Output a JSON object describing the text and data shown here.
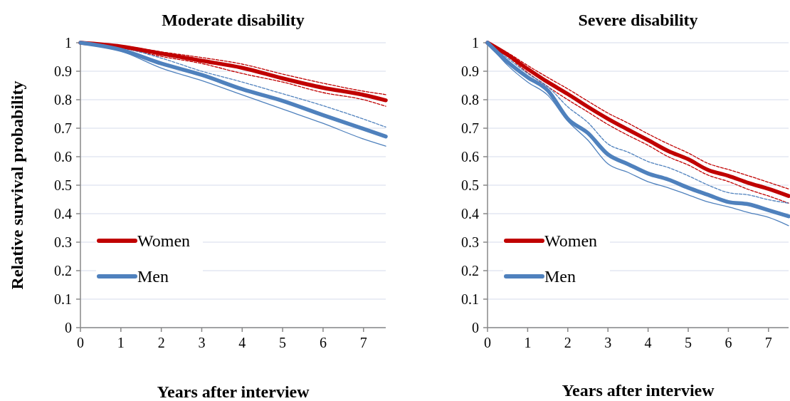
{
  "chart_data": [
    {
      "type": "line",
      "title": "Moderate disability",
      "xlabel": "Years after interview",
      "ylabel": "Relative survival probability",
      "x": [
        0,
        1,
        2,
        3,
        4,
        5,
        6,
        7,
        7.55
      ],
      "xlim": [
        0,
        7.55
      ],
      "ylim": [
        0,
        1
      ],
      "xticks": [
        0,
        1,
        2,
        3,
        4,
        5,
        6,
        7
      ],
      "yticks": [
        0,
        0.1,
        0.2,
        0.3,
        0.4,
        0.5,
        0.6,
        0.7,
        0.8,
        0.9,
        1
      ],
      "grid": "y",
      "legend": "bottom left",
      "series": [
        {
          "color": "#c00000",
          "line_style": "dashed",
          "values": [
            1,
            0.99,
            0.968,
            0.948,
            0.925,
            0.89,
            0.858,
            0.83,
            0.818
          ]
        },
        {
          "color": "#c00000",
          "line_style": "dashed",
          "values": [
            1,
            0.982,
            0.952,
            0.927,
            0.892,
            0.862,
            0.825,
            0.8,
            0.777
          ]
        },
        {
          "color": "#4f81bd",
          "line_style": "dashed",
          "values": [
            1,
            0.983,
            0.946,
            0.9,
            0.862,
            0.821,
            0.779,
            0.732,
            0.704
          ]
        },
        {
          "color": "#4f81bd",
          "line_style": "solid",
          "values": [
            1,
            0.971,
            0.911,
            0.867,
            0.817,
            0.767,
            0.717,
            0.662,
            0.637
          ]
        },
        {
          "name": "Women",
          "color": "#c00000",
          "line_style": "solid",
          "values": [
            1,
            0.987,
            0.962,
            0.937,
            0.912,
            0.875,
            0.842,
            0.817,
            0.798
          ]
        },
        {
          "name": "Men",
          "color": "#4f81bd",
          "line_style": "solid",
          "values": [
            1,
            0.975,
            0.927,
            0.887,
            0.837,
            0.796,
            0.746,
            0.698,
            0.671
          ]
        }
      ]
    },
    {
      "type": "line",
      "title": "Severe disability",
      "xlabel": "Years after interview",
      "x": [
        0,
        0.5,
        1,
        1.5,
        2,
        2.5,
        3,
        3.5,
        4,
        4.5,
        5,
        5.5,
        6,
        6.5,
        7,
        7.5
      ],
      "xlim": [
        0,
        7.5
      ],
      "ylim": [
        0,
        1
      ],
      "xticks": [
        0,
        1,
        2,
        3,
        4,
        5,
        6,
        7
      ],
      "yticks": [
        0,
        0.1,
        0.2,
        0.3,
        0.4,
        0.5,
        0.6,
        0.7,
        0.8,
        0.9,
        1
      ],
      "grid": "y",
      "legend": "bottom left",
      "series": [
        {
          "color": "#c00000",
          "line_style": "dashed",
          "values": [
            1,
            0.965,
            0.92,
            0.878,
            0.838,
            0.795,
            0.753,
            0.718,
            0.68,
            0.645,
            0.613,
            0.576,
            0.555,
            0.533,
            0.51,
            0.487
          ]
        },
        {
          "color": "#c00000",
          "line_style": "dashed",
          "values": [
            1,
            0.952,
            0.895,
            0.846,
            0.8,
            0.757,
            0.713,
            0.675,
            0.64,
            0.6,
            0.571,
            0.535,
            0.513,
            0.485,
            0.462,
            0.437
          ]
        },
        {
          "color": "#4f81bd",
          "line_style": "dashed",
          "values": [
            1,
            0.946,
            0.892,
            0.846,
            0.775,
            0.72,
            0.645,
            0.616,
            0.583,
            0.562,
            0.533,
            0.5,
            0.474,
            0.466,
            0.449,
            0.437
          ]
        },
        {
          "color": "#4f81bd",
          "line_style": "solid",
          "values": [
            1,
            0.921,
            0.862,
            0.816,
            0.725,
            0.658,
            0.575,
            0.545,
            0.512,
            0.491,
            0.466,
            0.441,
            0.424,
            0.404,
            0.387,
            0.358
          ]
        },
        {
          "name": "Women",
          "color": "#c00000",
          "line_style": "solid",
          "values": [
            1,
            0.958,
            0.908,
            0.862,
            0.82,
            0.775,
            0.733,
            0.695,
            0.658,
            0.62,
            0.591,
            0.553,
            0.533,
            0.508,
            0.487,
            0.462
          ]
        },
        {
          "name": "Men",
          "color": "#4f81bd",
          "line_style": "solid",
          "values": [
            1,
            0.933,
            0.879,
            0.833,
            0.733,
            0.683,
            0.608,
            0.574,
            0.541,
            0.52,
            0.491,
            0.466,
            0.441,
            0.433,
            0.412,
            0.391
          ]
        }
      ]
    }
  ]
}
